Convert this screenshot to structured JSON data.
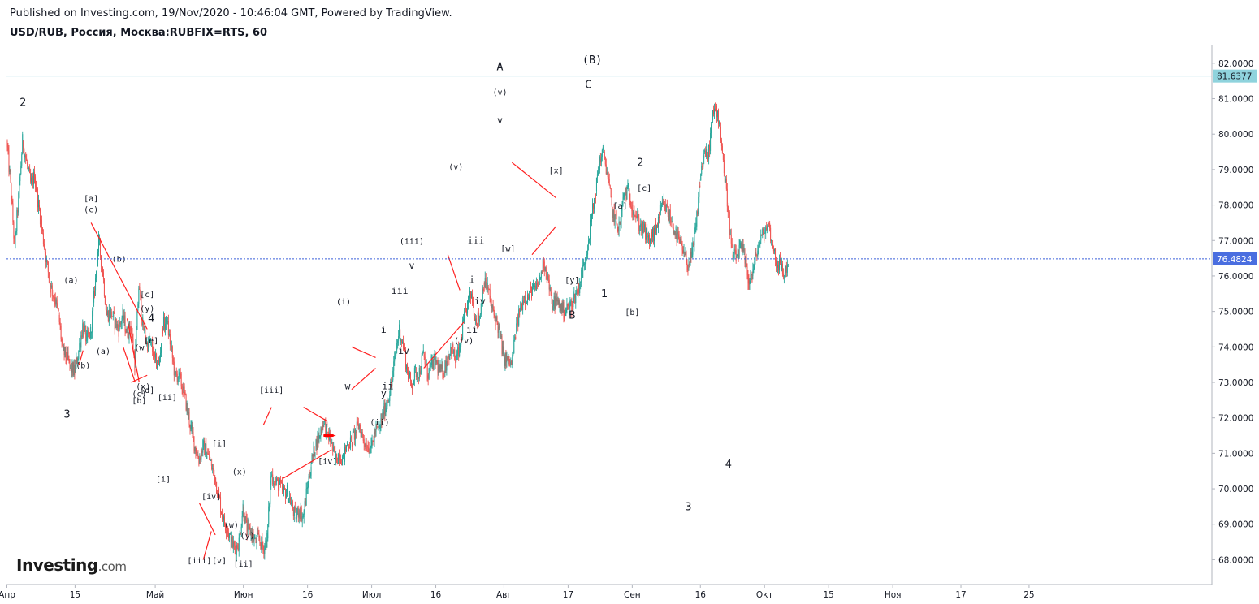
{
  "header": {
    "published": "Published on Investing.com, 19/Nov/2020 - 10:46:04 GMT, Powered by TradingView.",
    "title": "USD/RUB, Россия, Москва:RUBFIX=RTS, 60"
  },
  "logo": {
    "brand": "Investing",
    "suffix": ".com"
  },
  "chart_data": {
    "type": "candlestick",
    "title": "USD/RUB, Россия, Москва:RUBFIX=RTS, 60",
    "ylim": [
      67.3,
      82.5
    ],
    "y_ticks": [
      "82.0000",
      "81.0000",
      "80.0000",
      "79.0000",
      "78.0000",
      "77.0000",
      "76.0000",
      "75.0000",
      "74.0000",
      "73.0000",
      "72.0000",
      "71.0000",
      "70.0000",
      "69.0000",
      "68.0000"
    ],
    "x_ticks": [
      "Апр",
      "15",
      "Май",
      "Июн",
      "16",
      "Июл",
      "16",
      "Авг",
      "17",
      "Сен",
      "16",
      "Окт",
      "15",
      "Ноя",
      "17",
      "25"
    ],
    "x_tick_index": [
      0,
      17,
      37,
      59,
      75,
      91,
      107,
      124,
      140,
      156,
      173,
      189,
      205,
      221,
      238,
      255
    ],
    "colors": {
      "up": "#26a69a",
      "down": "#ef5350",
      "hline": "#7fc8d2",
      "current": "#3a5fd9",
      "wave_line": "#ff2020"
    },
    "horizontal_level": {
      "value": 81.6377,
      "label": "81.6377"
    },
    "current_price": {
      "value": 76.4824,
      "label": "76.4824"
    },
    "closes": [
      79.8,
      78.6,
      76.8,
      78.2,
      79.8,
      79.2,
      78.6,
      78.8,
      78.0,
      77.2,
      76.4,
      75.7,
      75.4,
      74.9,
      73.9,
      73.7,
      73.4,
      73.3,
      73.9,
      74.6,
      74.2,
      74.4,
      75.6,
      77.0,
      76.1,
      74.9,
      75.0,
      74.7,
      74.5,
      74.9,
      74.4,
      74.6,
      73.5,
      75.7,
      74.6,
      74.1,
      74.1,
      73.6,
      73.5,
      74.6,
      74.7,
      74.0,
      73.2,
      73.2,
      72.8,
      72.3,
      71.7,
      71.2,
      70.8,
      71.2,
      71.0,
      70.7,
      70.3,
      69.8,
      69.1,
      68.9,
      68.5,
      68.3,
      68.5,
      69.5,
      68.8,
      68.8,
      68.5,
      68.6,
      68.3,
      68.6,
      70.4,
      70.2,
      70.1,
      69.9,
      69.9,
      69.6,
      69.2,
      69.4,
      69.2,
      70.0,
      70.7,
      71.2,
      71.5,
      71.9,
      71.6,
      71.3,
      70.8,
      71.0,
      70.8,
      71.3,
      71.3,
      71.6,
      71.8,
      71.4,
      71.2,
      71.2,
      71.6,
      71.7,
      72.1,
      72.5,
      72.9,
      73.8,
      74.5,
      74.0,
      73.3,
      72.9,
      73.3,
      73.3,
      73.8,
      73.2,
      73.5,
      73.6,
      73.3,
      73.3,
      73.7,
      74.0,
      73.6,
      73.9,
      74.7,
      75.2,
      75.5,
      74.8,
      74.8,
      75.8,
      75.7,
      75.1,
      74.8,
      74.4,
      73.7,
      73.6,
      73.5,
      74.4,
      75.0,
      75.4,
      75.4,
      75.6,
      75.6,
      75.9,
      76.4,
      76.0,
      75.2,
      75.3,
      75.2,
      75.0,
      75.1,
      75.2,
      75.5,
      75.8,
      76.3,
      76.9,
      77.7,
      78.4,
      79.3,
      79.5,
      78.8,
      77.9,
      77.5,
      77.4,
      78.3,
      78.4,
      78.0,
      77.7,
      77.4,
      77.3,
      77.0,
      77.1,
      77.3,
      77.8,
      78.0,
      77.8,
      77.5,
      77.2,
      76.9,
      76.6,
      76.3,
      76.6,
      77.4,
      78.7,
      79.5,
      79.3,
      80.4,
      80.8,
      80.2,
      79.0,
      77.9,
      76.6,
      76.5,
      76.8,
      76.6,
      75.9,
      76.0,
      76.6,
      77.0,
      77.2,
      77.5,
      76.9,
      76.4,
      76.3,
      76.0,
      76.4
    ],
    "wave_labels": [
      {
        "text": "2",
        "i": 4,
        "v": 80.8,
        "size": "lg"
      },
      {
        "text": "3",
        "i": 15,
        "v": 72.0,
        "size": "lg"
      },
      {
        "text": "(a)",
        "i": 16,
        "v": 75.8,
        "size": "sm"
      },
      {
        "text": "(b)",
        "i": 19,
        "v": 73.4,
        "size": "sm"
      },
      {
        "text": "[a]",
        "i": 21,
        "v": 78.1,
        "size": "sm"
      },
      {
        "text": "(c)",
        "i": 21,
        "v": 77.8,
        "size": "sm"
      },
      {
        "text": "(a)",
        "i": 24,
        "v": 73.8,
        "size": "sm"
      },
      {
        "text": "(b)",
        "i": 28,
        "v": 76.4,
        "size": "sm"
      },
      {
        "text": "[c]",
        "i": 35,
        "v": 75.4,
        "size": "sm"
      },
      {
        "text": "(y)",
        "i": 35,
        "v": 75.0,
        "size": "sm"
      },
      {
        "text": "4",
        "i": 36,
        "v": 74.7,
        "size": "lg"
      },
      {
        "text": "[e]",
        "i": 36,
        "v": 74.1,
        "size": "sm"
      },
      {
        "text": "(w",
        "i": 33,
        "v": 73.9,
        "size": "sm"
      },
      {
        "text": "(x)",
        "i": 34,
        "v": 72.8,
        "size": "sm"
      },
      {
        "text": "(c)",
        "i": 33,
        "v": 72.6,
        "size": "sm"
      },
      {
        "text": "[d]",
        "i": 35,
        "v": 72.7,
        "size": "sm"
      },
      {
        "text": "[b]",
        "i": 33,
        "v": 72.4,
        "size": "sm"
      },
      {
        "text": "[ii]",
        "i": 40,
        "v": 72.5,
        "size": "sm"
      },
      {
        "text": "[i]",
        "i": 39,
        "v": 70.2,
        "size": "sm"
      },
      {
        "text": "[i]",
        "i": 53,
        "v": 71.2,
        "size": "sm"
      },
      {
        "text": "[iv]",
        "i": 51,
        "v": 69.7,
        "size": "sm"
      },
      {
        "text": "(x)",
        "i": 58,
        "v": 70.4,
        "size": "sm"
      },
      {
        "text": "(w)",
        "i": 56,
        "v": 68.9,
        "size": "sm"
      },
      {
        "text": "(y)",
        "i": 60,
        "v": 68.6,
        "size": "sm"
      },
      {
        "text": "[iii]",
        "i": 48,
        "v": 67.9,
        "size": "sm"
      },
      {
        "text": "[v]",
        "i": 53,
        "v": 67.9,
        "size": "sm"
      },
      {
        "text": "[ii]",
        "i": 59,
        "v": 67.8,
        "size": "sm"
      },
      {
        "text": "[iii]",
        "i": 66,
        "v": 72.7,
        "size": "sm"
      },
      {
        "text": "[iv]",
        "i": 80,
        "v": 70.7,
        "size": "sm"
      },
      {
        "text": "(i)",
        "i": 84,
        "v": 75.2,
        "size": "sm"
      },
      {
        "text": "w",
        "i": 85,
        "v": 72.8,
        "size": "md"
      },
      {
        "text": "y",
        "i": 94,
        "v": 72.6,
        "size": "md"
      },
      {
        "text": "ii",
        "i": 95,
        "v": 72.8,
        "size": "md"
      },
      {
        "text": "(ii)",
        "i": 93,
        "v": 71.8,
        "size": "sm"
      },
      {
        "text": "i",
        "i": 94,
        "v": 74.4,
        "size": "md"
      },
      {
        "text": "iii",
        "i": 98,
        "v": 75.5,
        "size": "md"
      },
      {
        "text": "iv",
        "i": 99,
        "v": 73.8,
        "size": "md"
      },
      {
        "text": "(iii)",
        "i": 101,
        "v": 76.9,
        "size": "sm"
      },
      {
        "text": "v",
        "i": 101,
        "v": 76.2,
        "size": "md"
      },
      {
        "text": "(v)",
        "i": 112,
        "v": 79.0,
        "size": "sm"
      },
      {
        "text": "(iv)",
        "i": 114,
        "v": 74.1,
        "size": "sm"
      },
      {
        "text": "ii",
        "i": 116,
        "v": 74.4,
        "size": "md"
      },
      {
        "text": "i",
        "i": 116,
        "v": 75.8,
        "size": "md"
      },
      {
        "text": "iv",
        "i": 118,
        "v": 75.2,
        "size": "md"
      },
      {
        "text": "iii",
        "i": 117,
        "v": 76.9,
        "size": "md"
      },
      {
        "text": "A",
        "i": 123,
        "v": 81.8,
        "size": "lg"
      },
      {
        "text": "(v)",
        "i": 123,
        "v": 81.1,
        "size": "sm"
      },
      {
        "text": "v",
        "i": 123,
        "v": 80.3,
        "size": "md"
      },
      {
        "text": "[w]",
        "i": 125,
        "v": 76.7,
        "size": "sm"
      },
      {
        "text": "[x]",
        "i": 137,
        "v": 78.9,
        "size": "sm"
      },
      {
        "text": "[y]",
        "i": 141,
        "v": 75.8,
        "size": "sm"
      },
      {
        "text": "B",
        "i": 141,
        "v": 74.8,
        "size": "lg"
      },
      {
        "text": "(B)",
        "i": 146,
        "v": 82.0,
        "size": "lg"
      },
      {
        "text": "C",
        "i": 145,
        "v": 81.3,
        "size": "lg"
      },
      {
        "text": "1",
        "i": 149,
        "v": 75.4,
        "size": "lg"
      },
      {
        "text": "[a]",
        "i": 153,
        "v": 77.9,
        "size": "sm"
      },
      {
        "text": "[b]",
        "i": 156,
        "v": 74.9,
        "size": "sm"
      },
      {
        "text": "2",
        "i": 158,
        "v": 79.1,
        "size": "lg"
      },
      {
        "text": "[c]",
        "i": 159,
        "v": 78.4,
        "size": "sm"
      },
      {
        "text": "4",
        "i": 180,
        "v": 70.6,
        "size": "lg"
      },
      {
        "text": "3",
        "i": 170,
        "v": 69.4,
        "size": "lg"
      }
    ],
    "wave_lines": [
      [
        [
          21,
          77.5
        ],
        [
          35,
          74.5
        ]
      ],
      [
        [
          18,
          73.5
        ],
        [
          19,
          73.9
        ]
      ],
      [
        [
          30,
          74.8
        ],
        [
          33,
          73.0
        ]
      ],
      [
        [
          29,
          74.0
        ],
        [
          32,
          73.0
        ]
      ],
      [
        [
          31,
          73.0
        ],
        [
          35,
          73.2
        ]
      ],
      [
        [
          48,
          69.6
        ],
        [
          52,
          68.7
        ]
      ],
      [
        [
          49,
          68.0
        ],
        [
          51,
          68.8
        ]
      ],
      [
        [
          64,
          71.8
        ],
        [
          66,
          72.3
        ]
      ],
      [
        [
          69,
          70.3
        ],
        [
          81,
          71.1
        ]
      ],
      [
        [
          74,
          72.3
        ],
        [
          80,
          71.9
        ]
      ],
      [
        [
          79,
          71.5
        ],
        [
          82,
          71.5
        ]
      ],
      [
        [
          86,
          74.0
        ],
        [
          92,
          73.7
        ]
      ],
      [
        [
          86,
          72.8
        ],
        [
          92,
          73.4
        ]
      ],
      [
        [
          104,
          73.4
        ],
        [
          114,
          74.7
        ]
      ],
      [
        [
          110,
          76.6
        ],
        [
          113,
          75.6
        ]
      ],
      [
        [
          126,
          79.2
        ],
        [
          137,
          78.2
        ]
      ],
      [
        [
          131,
          76.6
        ],
        [
          137,
          77.4
        ]
      ]
    ]
  }
}
